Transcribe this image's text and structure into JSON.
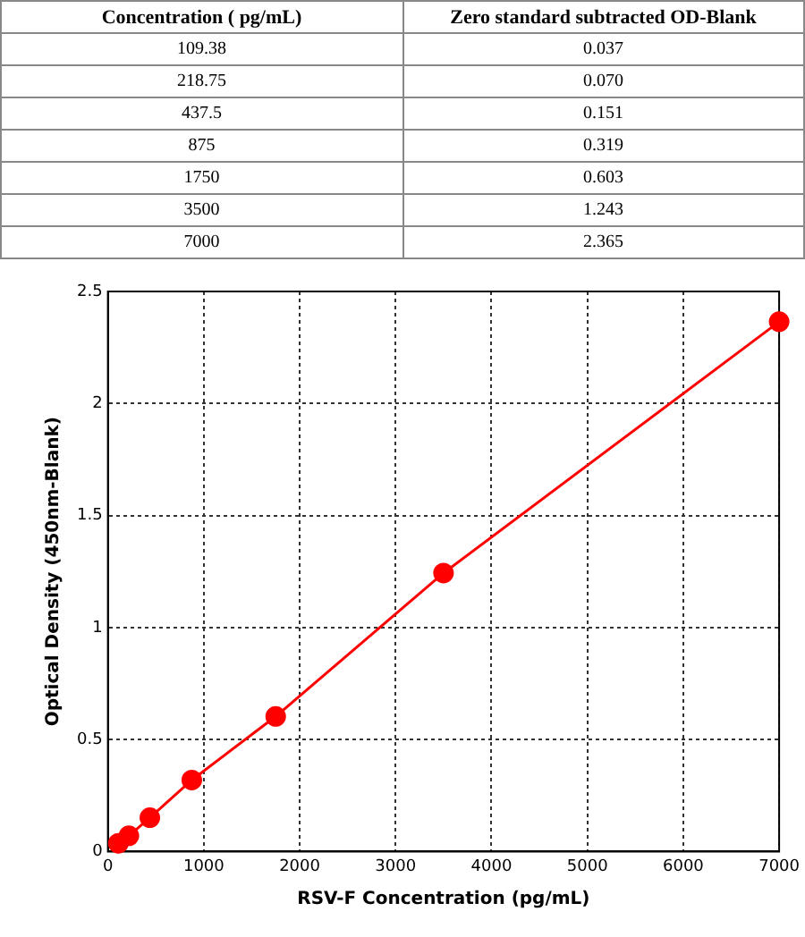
{
  "chart_data": [
    {
      "type": "other",
      "annotations": [
        "Concentration ( pg/mL)",
        "Zero standard subtracted OD-Blank",
        "109.38",
        "0.037",
        "218.75",
        "0.070",
        "437.5",
        "0.151",
        "875",
        "0.319",
        "1750",
        "0.603",
        "3500",
        "1.243",
        "7000",
        "2.365"
      ]
    },
    {
      "type": "line",
      "xlabel": "RSV-F Concentration (pg/mL)",
      "ylabel": "Optical Density (450nm-Blank)",
      "x": [
        109.38,
        218.75,
        437.5,
        875,
        1750,
        3500,
        7000
      ],
      "series": [
        {
          "color": "#ff0000",
          "values": [
            0.037,
            0.07,
            0.151,
            0.319,
            0.603,
            1.243,
            2.365
          ]
        }
      ],
      "xlim": [
        0,
        7000
      ],
      "xticks": [
        0,
        1000,
        2000,
        3000,
        4000,
        5000,
        6000,
        7000
      ],
      "ylim": [
        0,
        2.5
      ],
      "yticks": [
        0,
        0.5,
        1,
        1.5,
        2,
        2.5
      ],
      "grid": true,
      "marker": "circle",
      "line_style": "solid"
    }
  ]
}
